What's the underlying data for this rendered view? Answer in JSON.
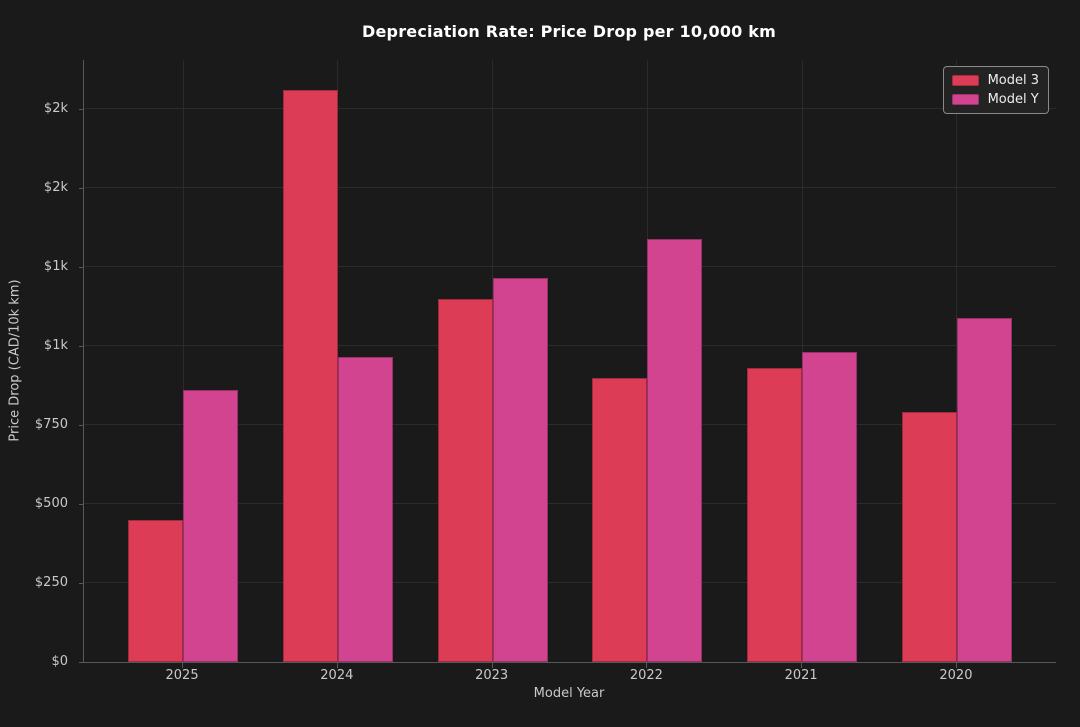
{
  "chart_data": {
    "type": "bar",
    "title": "Depreciation Rate: Price Drop per 10,000 km",
    "xlabel": "Model Year",
    "ylabel": "Price Drop (CAD/10k km)",
    "categories": [
      "2025",
      "2024",
      "2023",
      "2022",
      "2021",
      "2020"
    ],
    "series": [
      {
        "name": "Model 3",
        "color": "#dc3c56",
        "values": [
          450,
          1810,
          1150,
          900,
          930,
          790
        ]
      },
      {
        "name": "Model Y",
        "color": "#d2448f",
        "values": [
          860,
          965,
          1215,
          1340,
          980,
          1090
        ]
      }
    ],
    "ylim": [
      0,
      1905
    ],
    "yticks": [
      {
        "value": 0,
        "label": "$0"
      },
      {
        "value": 250,
        "label": "$250"
      },
      {
        "value": 500,
        "label": "$500"
      },
      {
        "value": 750,
        "label": "$750"
      },
      {
        "value": 1000,
        "label": "$1k"
      },
      {
        "value": 1250,
        "label": "$1k"
      },
      {
        "value": 1500,
        "label": "$2k"
      },
      {
        "value": 1750,
        "label": "$2k"
      }
    ],
    "grid": true,
    "legend_position": "top-right",
    "colors": {
      "background": "#1a1a1a",
      "grid": "#2b2b2b",
      "spine": "#585858",
      "tick_text": "#c9c9c9",
      "title_text": "#ffffff"
    }
  }
}
